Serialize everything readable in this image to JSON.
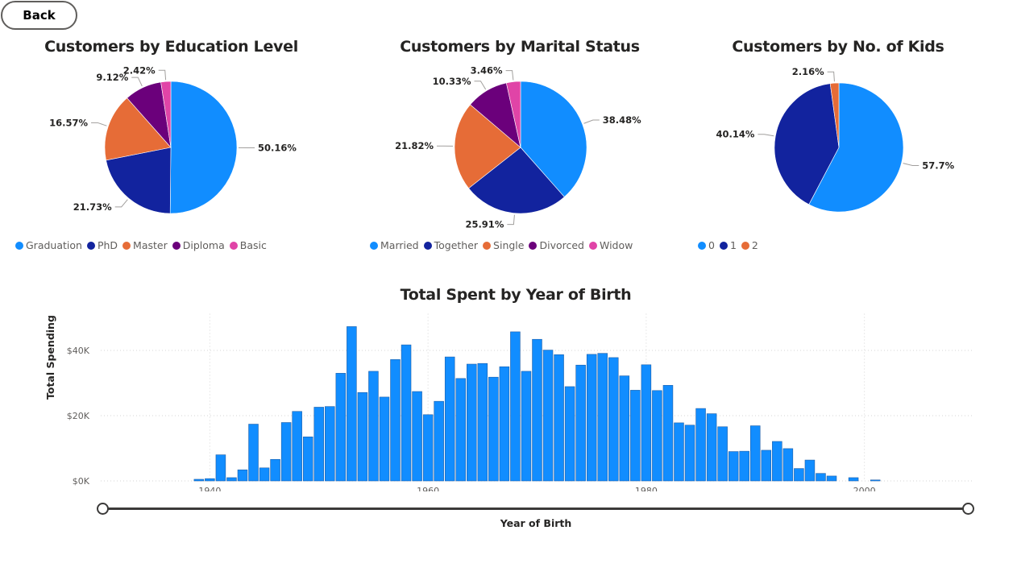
{
  "back_button": {
    "label": "Back"
  },
  "chart_data": [
    {
      "type": "pie",
      "title": "Customers by Education Level",
      "legend_position": "bottom-left",
      "slices": [
        {
          "label": "Graduation",
          "value": 50.16,
          "data_label": "50.16%",
          "color": "#118DFF"
        },
        {
          "label": "PhD",
          "value": 21.73,
          "data_label": "21.73%",
          "color": "#12239E"
        },
        {
          "label": "Master",
          "value": 16.57,
          "data_label": "16.57%",
          "color": "#E66C37"
        },
        {
          "label": "Diploma",
          "value": 9.12,
          "data_label": "9.12%",
          "color": "#6B007B"
        },
        {
          "label": "Basic",
          "value": 2.42,
          "data_label": "2.42%",
          "color": "#E044A7"
        }
      ]
    },
    {
      "type": "pie",
      "title": "Customers by Marital Status",
      "legend_position": "bottom-left",
      "slices": [
        {
          "label": "Married",
          "value": 38.48,
          "data_label": "38.48%",
          "color": "#118DFF"
        },
        {
          "label": "Together",
          "value": 25.91,
          "data_label": "25.91%",
          "color": "#12239E"
        },
        {
          "label": "Single",
          "value": 21.82,
          "data_label": "21.82%",
          "color": "#E66C37"
        },
        {
          "label": "Divorced",
          "value": 10.33,
          "data_label": "10.33%",
          "color": "#6B007B"
        },
        {
          "label": "Widow",
          "value": 3.46,
          "data_label": "3.46%",
          "color": "#E044A7"
        }
      ]
    },
    {
      "type": "pie",
      "title": "Customers by No. of Kids",
      "legend_position": "bottom-left",
      "slices": [
        {
          "label": "0",
          "value": 57.7,
          "data_label": "57.7%",
          "color": "#118DFF"
        },
        {
          "label": "1",
          "value": 40.14,
          "data_label": "40.14%",
          "color": "#12239E"
        },
        {
          "label": "2",
          "value": 2.16,
          "data_label": "2.16%",
          "color": "#E66C37"
        }
      ]
    },
    {
      "type": "bar",
      "title": "Total Spent by Year of Birth",
      "xlabel": "Year of Birth",
      "ylabel": "Total Spending",
      "bar_color": "#118DFF",
      "xlim": [
        1930,
        2010
      ],
      "ylim": [
        0,
        50000
      ],
      "x_ticks": [
        "1940",
        "1960",
        "1980",
        "2000"
      ],
      "y_ticks": [
        "$0K",
        "$20K",
        "$40K"
      ],
      "grid": true,
      "x": [
        1939,
        1940,
        1941,
        1942,
        1943,
        1944,
        1945,
        1946,
        1947,
        1948,
        1949,
        1950,
        1951,
        1952,
        1953,
        1954,
        1955,
        1956,
        1957,
        1958,
        1959,
        1960,
        1961,
        1962,
        1963,
        1964,
        1965,
        1966,
        1967,
        1968,
        1969,
        1970,
        1971,
        1972,
        1973,
        1974,
        1975,
        1976,
        1977,
        1978,
        1979,
        1980,
        1981,
        1982,
        1983,
        1984,
        1985,
        1986,
        1987,
        1988,
        1989,
        1990,
        1991,
        1992,
        1993,
        1994,
        1995,
        1996,
        1997,
        1999,
        2001
      ],
      "values": [
        500,
        700,
        8000,
        1000,
        3400,
        17400,
        4000,
        6600,
        17900,
        21300,
        13500,
        22600,
        22800,
        33000,
        47300,
        27100,
        33600,
        25700,
        37200,
        41700,
        27400,
        20300,
        24400,
        38000,
        31400,
        35800,
        36000,
        31800,
        35000,
        45700,
        33600,
        43400,
        40100,
        38700,
        28900,
        35500,
        38800,
        39100,
        37800,
        32200,
        27800,
        35600,
        27700,
        29300,
        17800,
        17100,
        22200,
        20600,
        16600,
        9000,
        9100,
        16900,
        9400,
        12100,
        9900,
        3800,
        6400,
        2300,
        1500,
        1000,
        300
      ]
    }
  ]
}
